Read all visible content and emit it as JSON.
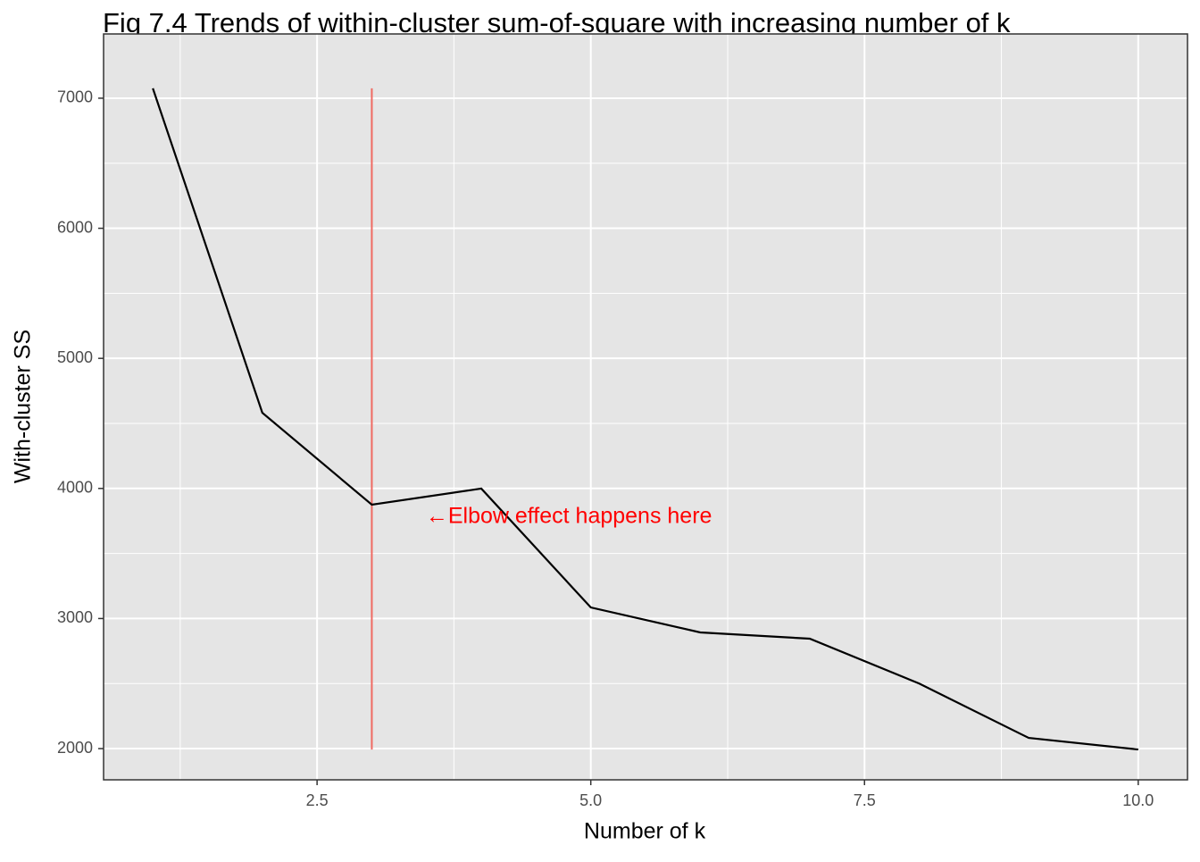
{
  "chart_data": {
    "type": "line",
    "title": "Fig 7.4 Trends of within-cluster sum-of-square with increasing number of k",
    "x_label": "Number of k",
    "y_label": "With-cluster SS",
    "x": [
      1,
      2,
      3,
      4,
      5,
      6,
      7,
      8,
      9,
      10
    ],
    "series": [
      {
        "color": "#000000",
        "values": [
          7076,
          4582,
          3875,
          3999,
          3085,
          2893,
          2845,
          2500,
          2082,
          1993
        ]
      }
    ],
    "xlim": [
      0.55,
      10.45
    ],
    "ylim": [
      1760,
      7494
    ],
    "xticks": [
      2.5,
      {
        "value": 5,
        "label": "5.0"
      },
      7.5,
      {
        "value": 10,
        "label": "10.0"
      }
    ],
    "yticks": [
      2000,
      3000,
      4000,
      5000,
      6000,
      7000
    ],
    "minor_xticks": [
      1.25,
      3.75,
      6.25,
      8.75
    ],
    "minor_yticks": [
      2500,
      3500,
      4500,
      5500,
      6500
    ],
    "grid": true,
    "panel_color": "#E5E5E5",
    "vline": {
      "x": 3,
      "ymin": 1993,
      "ymax": 7076,
      "color": "#F06A62"
    },
    "annotation": {
      "text": "←Elbow effect happens here",
      "x": 4.8,
      "y": 3780,
      "color": "#FF0000"
    }
  }
}
